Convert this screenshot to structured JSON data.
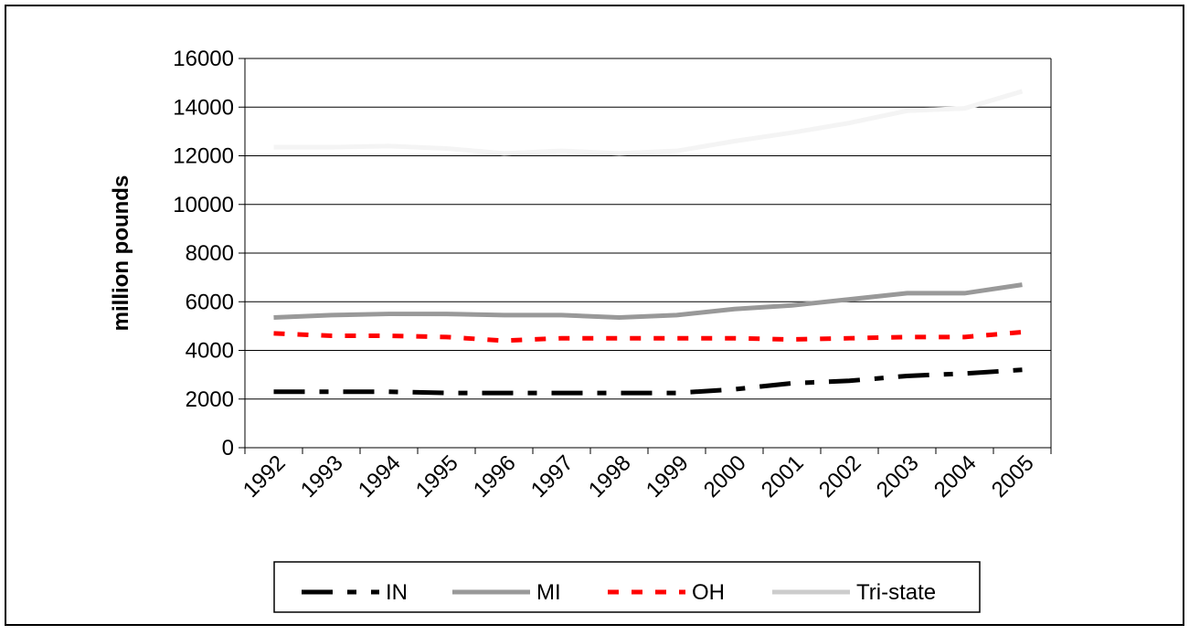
{
  "chart_data": {
    "type": "line",
    "y_label": "million pounds",
    "categories": [
      "1992",
      "1993",
      "1994",
      "1995",
      "1996",
      "1997",
      "1998",
      "1999",
      "2000",
      "2001",
      "2002",
      "2003",
      "2004",
      "2005"
    ],
    "series": [
      {
        "name": "IN",
        "color": "#000000",
        "values": [
          2300,
          2300,
          2300,
          2250,
          2250,
          2250,
          2250,
          2250,
          2400,
          2650,
          2750,
          2950,
          3050,
          3200
        ]
      },
      {
        "name": "MI",
        "color": "#999999",
        "values": [
          5350,
          5450,
          5500,
          5500,
          5450,
          5450,
          5350,
          5450,
          5700,
          5850,
          6100,
          6350,
          6350,
          6700
        ]
      },
      {
        "name": "OH",
        "color": "#ff0000",
        "values": [
          4700,
          4600,
          4600,
          4550,
          4400,
          4500,
          4500,
          4500,
          4500,
          4450,
          4500,
          4550,
          4550,
          4750
        ]
      },
      {
        "name": "Tri-state",
        "color": "#f4f4f4",
        "values": [
          12350,
          12350,
          12400,
          12300,
          12100,
          12200,
          12100,
          12200,
          12600,
          12950,
          13350,
          13850,
          13950,
          14650
        ]
      }
    ],
    "ylim": [
      0,
      16000
    ],
    "yticks": [
      0,
      2000,
      4000,
      6000,
      8000,
      10000,
      12000,
      14000,
      16000
    ],
    "grid": true
  }
}
